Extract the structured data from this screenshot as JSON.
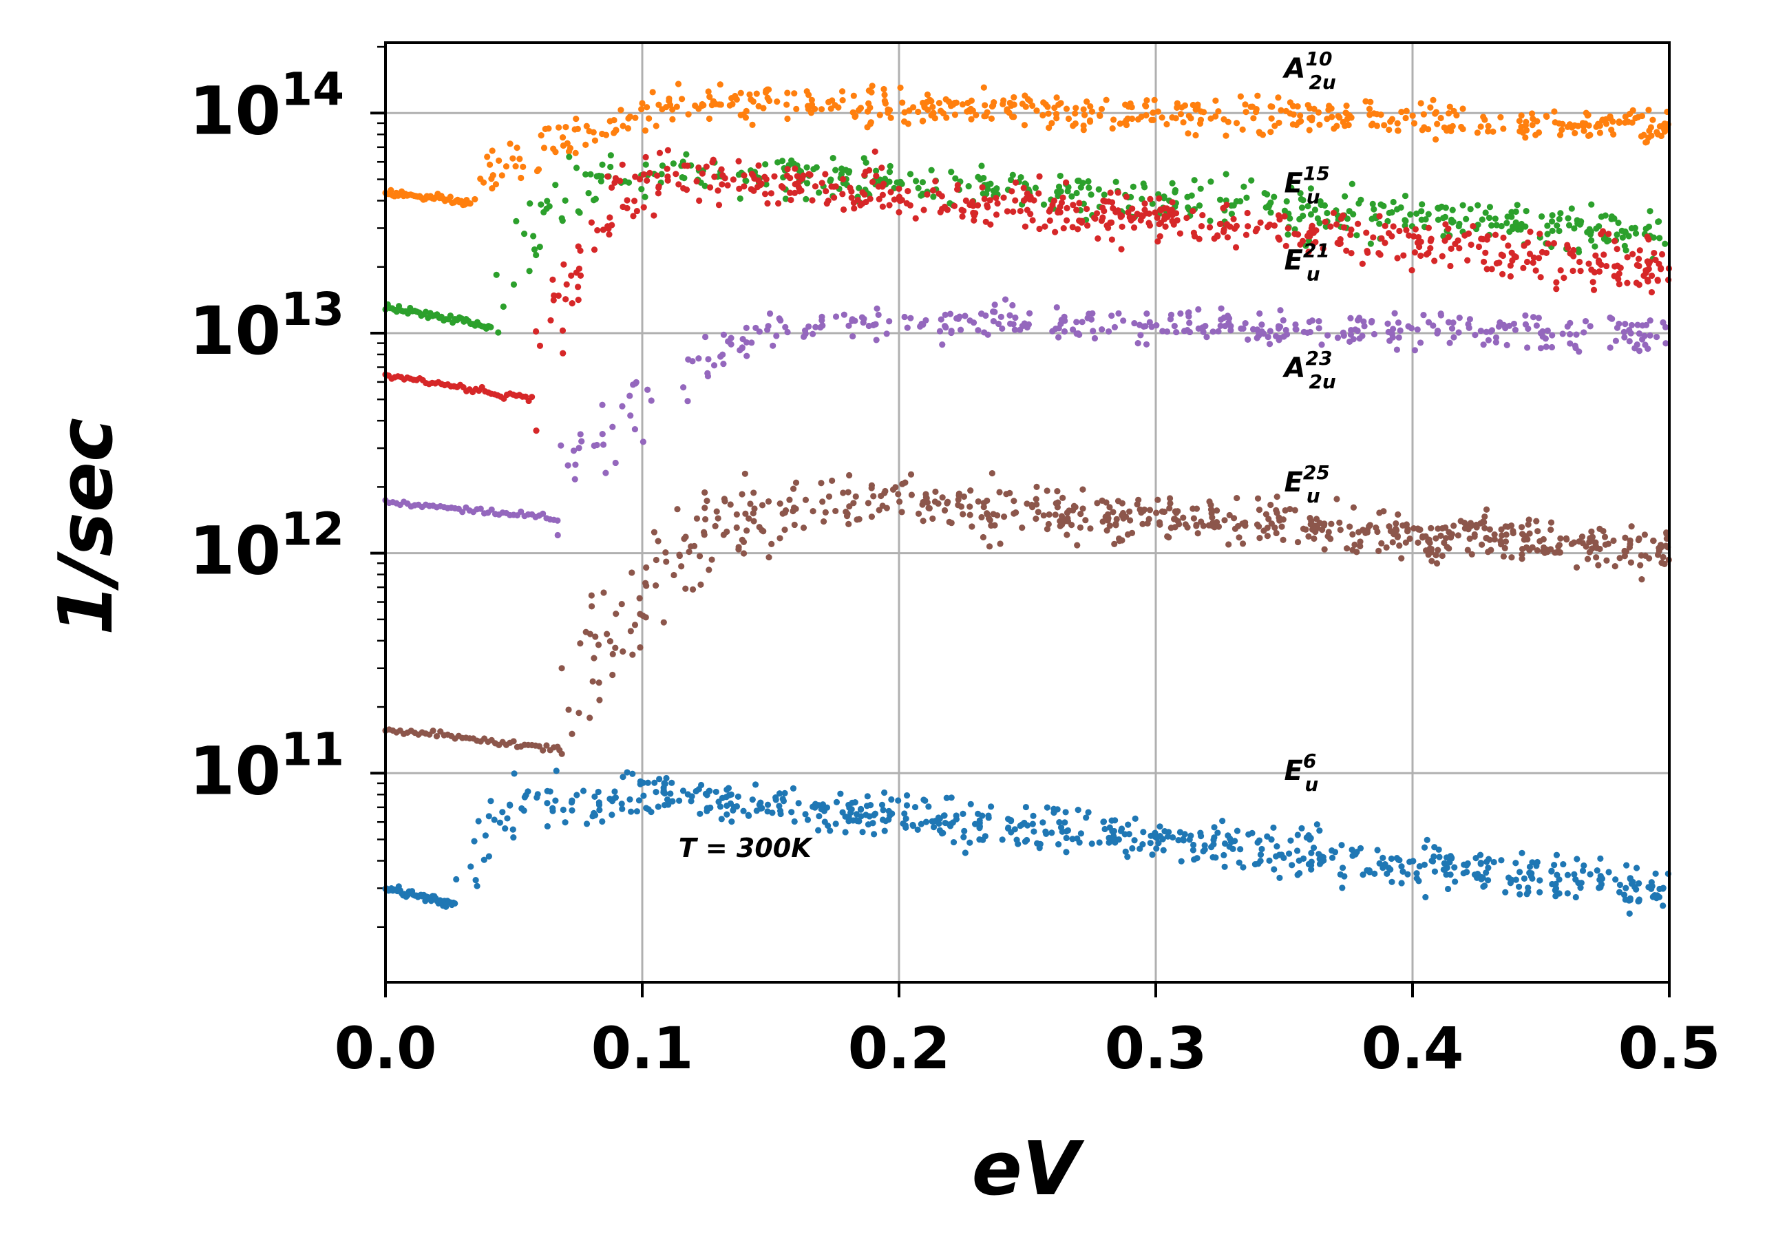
{
  "chart_data": {
    "type": "scatter",
    "title": "",
    "xlabel": "eV",
    "ylabel": "1/sec",
    "xlim": [
      0.0,
      0.5
    ],
    "ylim_log10": [
      10.05,
      14.32
    ],
    "yscale": "log",
    "grid": true,
    "x_ticks": [
      {
        "value": 0.0,
        "label": "0.0"
      },
      {
        "value": 0.1,
        "label": "0.1"
      },
      {
        "value": 0.2,
        "label": "0.2"
      },
      {
        "value": 0.3,
        "label": "0.3"
      },
      {
        "value": 0.4,
        "label": "0.4"
      },
      {
        "value": 0.5,
        "label": "0.5"
      }
    ],
    "y_ticks": [
      {
        "exp": 14,
        "base": "10",
        "sup": "14"
      },
      {
        "exp": 13,
        "base": "10",
        "sup": "13"
      },
      {
        "exp": 12,
        "base": "10",
        "sup": "12"
      },
      {
        "exp": 11,
        "base": "10",
        "sup": "11"
      }
    ],
    "annotation": "T = 300K",
    "annotation_pos": {
      "x": 0.14,
      "log10_y": 10.62
    },
    "series": [
      {
        "name": "A2u10",
        "label_main": "A",
        "label_sup": "10",
        "label_sub": "2u",
        "color": "#ff7f0e",
        "label_pos": {
          "x": 0.35,
          "log10_y": 14.16
        },
        "low_segment": {
          "x_start": 0.0,
          "x_end": 0.033,
          "log10_start": 13.64,
          "log10_end": 13.59
        },
        "jump_x": 0.033,
        "rise_x": 0.07,
        "peak_x": 0.12,
        "log10_at_jump": 13.64,
        "log10_peak": 14.08,
        "log10_end": 13.97,
        "spread_low": 0.06,
        "noise": 0.035,
        "n_points": 520
      },
      {
        "name": "Eu15",
        "label_main": "E",
        "label_sup": "15",
        "label_sub": "u",
        "color": "#2ca02c",
        "label_pos": {
          "x": 0.35,
          "log10_y": 13.64
        },
        "low_segment": {
          "x_start": 0.0,
          "x_end": 0.041,
          "log10_start": 13.12,
          "log10_end": 13.03
        },
        "jump_x": 0.041,
        "rise_x": 0.075,
        "peak_x": 0.08,
        "log10_at_jump": 13.2,
        "log10_peak": 13.8,
        "log10_end": 13.48,
        "spread_low": 0.35,
        "noise": 0.045,
        "n_points": 480
      },
      {
        "name": "Eu21",
        "label_main": "E",
        "label_sup": "21",
        "label_sub": "u",
        "color": "#d62728",
        "label_pos": {
          "x": 0.35,
          "log10_y": 13.29
        },
        "low_segment": {
          "x_start": 0.0,
          "x_end": 0.057,
          "log10_start": 12.81,
          "log10_end": 12.7
        },
        "jump_x": 0.057,
        "rise_x": 0.085,
        "peak_x": 0.09,
        "log10_at_jump": 12.8,
        "log10_peak": 13.78,
        "log10_end": 13.32,
        "spread_low": 0.45,
        "noise": 0.05,
        "n_points": 560
      },
      {
        "name": "A2u23",
        "label_main": "A",
        "label_sup": "23",
        "label_sub": "2u",
        "color": "#9467bd",
        "label_pos": {
          "x": 0.35,
          "log10_y": 12.8
        },
        "low_segment": {
          "x_start": 0.0,
          "x_end": 0.067,
          "log10_start": 12.23,
          "log10_end": 12.16
        },
        "jump_x": 0.067,
        "rise_x": 0.1,
        "peak_x": 0.16,
        "log10_at_jump": 12.4,
        "log10_peak": 13.08,
        "log10_end": 13.03,
        "spread_low": 0.4,
        "noise": 0.035,
        "n_points": 380
      },
      {
        "name": "Eu25",
        "label_main": "E",
        "label_sup": "25",
        "label_sub": "u",
        "color": "#8c564b",
        "label_pos": {
          "x": 0.35,
          "log10_y": 12.28
        },
        "low_segment": {
          "x_start": 0.0,
          "x_end": 0.067,
          "log10_start": 11.2,
          "log10_end": 11.11
        },
        "jump_x": 0.067,
        "rise_x": 0.12,
        "peak_x": 0.13,
        "log10_at_jump": 11.35,
        "log10_peak": 12.3,
        "log10_end": 12.05,
        "spread_low": 0.55,
        "noise": 0.05,
        "n_points": 620
      },
      {
        "name": "Eu6",
        "label_main": "E",
        "label_sup": "6",
        "label_sub": "u",
        "color": "#1f77b4",
        "label_pos": {
          "x": 0.35,
          "log10_y": 10.97
        },
        "low_segment": {
          "x_start": 0.0,
          "x_end": 0.027,
          "log10_start": 10.48,
          "log10_end": 10.4
        },
        "jump_x": 0.027,
        "rise_x": 0.065,
        "peak_x": 0.05,
        "log10_at_jump": 10.6,
        "log10_peak": 11.0,
        "log10_end": 10.5,
        "spread_low": 0.3,
        "noise": 0.05,
        "n_points": 640
      }
    ]
  }
}
